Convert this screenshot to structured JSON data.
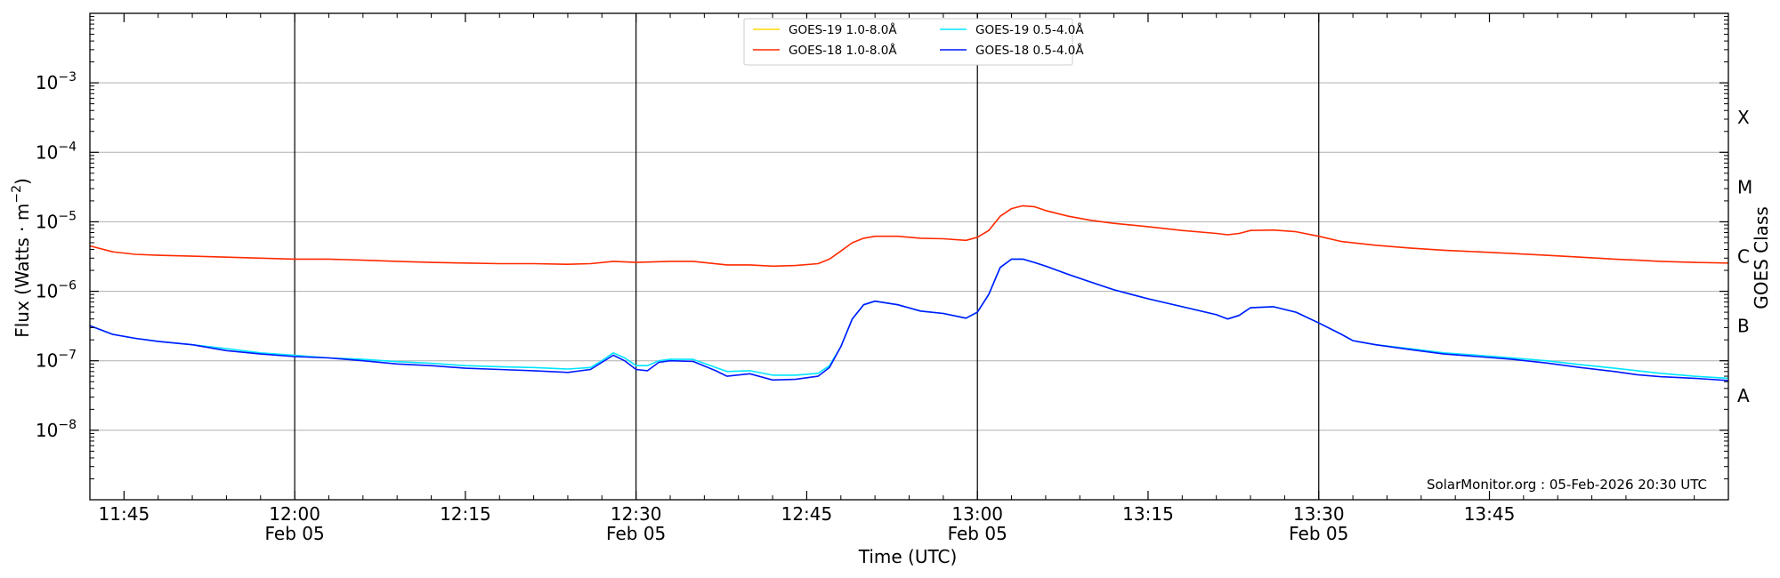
{
  "chart_data": {
    "type": "line",
    "xlabel": "Time (UTC)",
    "ylabel_parts": [
      "Flux (Watts · m",
      "−2",
      ")"
    ],
    "ylabel2": "GOES Class",
    "x_range": [
      "11:42",
      "14:06"
    ],
    "ylim": [
      1e-09,
      0.01
    ],
    "y_scale": "log",
    "grid": "horizontal-major",
    "legend_position": "top-center",
    "credit": "SolarMonitor.org : 05-Feb-2026 20:30 UTC",
    "x_ticks": [
      {
        "t": "11:45",
        "l1": "11:45",
        "l2": ""
      },
      {
        "t": "12:00",
        "l1": "12:00",
        "l2": "Feb 05"
      },
      {
        "t": "12:15",
        "l1": "12:15",
        "l2": ""
      },
      {
        "t": "12:30",
        "l1": "12:30",
        "l2": "Feb 05"
      },
      {
        "t": "12:45",
        "l1": "12:45",
        "l2": ""
      },
      {
        "t": "13:00",
        "l1": "13:00",
        "l2": "Feb 05"
      },
      {
        "t": "13:15",
        "l1": "13:15",
        "l2": ""
      },
      {
        "t": "13:30",
        "l1": "13:30",
        "l2": "Feb 05"
      },
      {
        "t": "13:45",
        "l1": "13:45",
        "l2": ""
      }
    ],
    "vlines": [
      "12:00",
      "12:30",
      "13:00",
      "13:30"
    ],
    "y_ticks": [
      {
        "exp": -8,
        "base": "10",
        "sup": "−8"
      },
      {
        "exp": -7,
        "base": "10",
        "sup": "−7"
      },
      {
        "exp": -6,
        "base": "10",
        "sup": "−6"
      },
      {
        "exp": -5,
        "base": "10",
        "sup": "−5"
      },
      {
        "exp": -4,
        "base": "10",
        "sup": "−4"
      },
      {
        "exp": -3,
        "base": "10",
        "sup": "−3"
      }
    ],
    "classes": [
      {
        "label": "A",
        "exp": -7.5
      },
      {
        "label": "B",
        "exp": -6.5
      },
      {
        "label": "C",
        "exp": -5.5
      },
      {
        "label": "M",
        "exp": -4.5
      },
      {
        "label": "X",
        "exp": -3.5
      }
    ],
    "series": [
      {
        "name": "GOES-19 1.0-8.0Å",
        "color": "#ffd700",
        "legend_only": true,
        "x": [],
        "y": []
      },
      {
        "name": "GOES-18 1.0-8.0Å",
        "color": "#ff2a00",
        "x": [
          "11:42",
          "11:44",
          "11:46",
          "11:48",
          "11:51",
          "11:54",
          "11:57",
          "12:00",
          "12:03",
          "12:06",
          "12:09",
          "12:12",
          "12:15",
          "12:18",
          "12:21",
          "12:24",
          "12:26",
          "12:28",
          "12:30",
          "12:33",
          "12:35",
          "12:38",
          "12:40",
          "12:42",
          "12:44",
          "12:46",
          "12:47",
          "12:48",
          "12:49",
          "12:50",
          "12:51",
          "12:53",
          "12:55",
          "12:57",
          "12:59",
          "13:00",
          "13:01",
          "13:02",
          "13:03",
          "13:04",
          "13:05",
          "13:06",
          "13:08",
          "13:10",
          "13:12",
          "13:15",
          "13:18",
          "13:21",
          "13:22",
          "13:23",
          "13:24",
          "13:26",
          "13:28",
          "13:30",
          "13:32",
          "13:35",
          "13:38",
          "13:41",
          "13:44",
          "13:47",
          "13:50",
          "13:53",
          "13:56",
          "13:58",
          "14:00",
          "14:03",
          "14:06"
        ],
        "y": [
          4.5e-06,
          3.7e-06,
          3.4e-06,
          3.3e-06,
          3.2e-06,
          3.1e-06,
          3e-06,
          2.9e-06,
          2.9e-06,
          2.8e-06,
          2.7e-06,
          2.6e-06,
          2.55e-06,
          2.5e-06,
          2.5e-06,
          2.45e-06,
          2.5e-06,
          2.7e-06,
          2.6e-06,
          2.7e-06,
          2.7e-06,
          2.4e-06,
          2.4e-06,
          2.3e-06,
          2.35e-06,
          2.5e-06,
          2.9e-06,
          3.8e-06,
          5e-06,
          5.8e-06,
          6.2e-06,
          6.2e-06,
          5.8e-06,
          5.7e-06,
          5.4e-06,
          6e-06,
          7.5e-06,
          1.2e-05,
          1.55e-05,
          1.7e-05,
          1.65e-05,
          1.45e-05,
          1.2e-05,
          1.05e-05,
          9.5e-06,
          8.5e-06,
          7.5e-06,
          6.8e-06,
          6.5e-06,
          6.8e-06,
          7.5e-06,
          7.6e-06,
          7.2e-06,
          6.2e-06,
          5.2e-06,
          4.6e-06,
          4.2e-06,
          3.9e-06,
          3.7e-06,
          3.5e-06,
          3.3e-06,
          3.1e-06,
          2.9e-06,
          2.8e-06,
          2.7e-06,
          2.6e-06,
          2.55e-06
        ]
      },
      {
        "name": "GOES-19 0.5-4.0Å",
        "color": "#00e5ff",
        "x": [
          "11:42",
          "11:44",
          "11:46",
          "11:48",
          "11:51",
          "11:54",
          "11:57",
          "12:00",
          "12:03",
          "12:06",
          "12:09",
          "12:12",
          "12:15",
          "12:18",
          "12:21",
          "12:24",
          "12:26",
          "12:27",
          "12:28",
          "12:29",
          "12:30",
          "12:31",
          "12:32",
          "12:33",
          "12:35",
          "12:37",
          "12:38",
          "12:40",
          "12:42",
          "12:44",
          "12:46",
          "12:47",
          "12:48",
          "12:49",
          "12:50",
          "12:51",
          "12:53",
          "12:55",
          "12:57",
          "12:59",
          "13:00",
          "13:01",
          "13:02",
          "13:03",
          "13:04",
          "13:05",
          "13:06",
          "13:08",
          "13:10",
          "13:12",
          "13:15",
          "13:18",
          "13:21",
          "13:22",
          "13:23",
          "13:24",
          "13:26",
          "13:28",
          "13:30",
          "13:32",
          "13:33",
          "13:35",
          "13:38",
          "13:41",
          "13:44",
          "13:47",
          "13:50",
          "13:53",
          "13:56",
          "13:58",
          "14:00",
          "14:03",
          "14:06"
        ],
        "y": [
          3.2e-07,
          2.4e-07,
          2.1e-07,
          1.9e-07,
          1.7e-07,
          1.5e-07,
          1.3e-07,
          1.2e-07,
          1.1e-07,
          1.05e-07,
          9.7e-08,
          9.2e-08,
          8.5e-08,
          8.2e-08,
          8e-08,
          7.6e-08,
          8e-08,
          1e-07,
          1.3e-07,
          1.1e-07,
          8.5e-08,
          8.5e-08,
          1e-07,
          1.05e-07,
          1.05e-07,
          8e-08,
          7e-08,
          7.2e-08,
          6.2e-08,
          6.2e-08,
          6.6e-08,
          8.5e-08,
          1.6e-07,
          4e-07,
          6.4e-07,
          7.2e-07,
          6.4e-07,
          5.2e-07,
          4.8e-07,
          4.1e-07,
          5e-07,
          9e-07,
          2.2e-06,
          2.9e-06,
          2.9e-06,
          2.6e-06,
          2.3e-06,
          1.75e-06,
          1.35e-06,
          1.05e-06,
          7.8e-07,
          6e-07,
          4.6e-07,
          4e-07,
          4.5e-07,
          5.8e-07,
          6e-07,
          5e-07,
          3.5e-07,
          2.4e-07,
          1.95e-07,
          1.7e-07,
          1.5e-07,
          1.3e-07,
          1.2e-07,
          1.1e-07,
          1e-07,
          8.8e-08,
          7.8e-08,
          7.2e-08,
          6.6e-08,
          6e-08,
          5.6e-08
        ]
      },
      {
        "name": "GOES-18 0.5-4.0Å",
        "color": "#0018ff",
        "x": [
          "11:42",
          "11:44",
          "11:46",
          "11:48",
          "11:51",
          "11:54",
          "11:57",
          "12:00",
          "12:03",
          "12:06",
          "12:09",
          "12:12",
          "12:15",
          "12:18",
          "12:21",
          "12:24",
          "12:26",
          "12:27",
          "12:28",
          "12:29",
          "12:30",
          "12:31",
          "12:32",
          "12:33",
          "12:35",
          "12:37",
          "12:38",
          "12:40",
          "12:42",
          "12:44",
          "12:46",
          "12:47",
          "12:48",
          "12:49",
          "12:50",
          "12:51",
          "12:53",
          "12:55",
          "12:57",
          "12:59",
          "13:00",
          "13:01",
          "13:02",
          "13:03",
          "13:04",
          "13:05",
          "13:06",
          "13:08",
          "13:10",
          "13:12",
          "13:15",
          "13:18",
          "13:21",
          "13:22",
          "13:23",
          "13:24",
          "13:26",
          "13:28",
          "13:30",
          "13:32",
          "13:33",
          "13:35",
          "13:38",
          "13:41",
          "13:44",
          "13:47",
          "13:50",
          "13:53",
          "13:56",
          "13:58",
          "14:00",
          "14:03",
          "14:06"
        ],
        "y": [
          3.2e-07,
          2.4e-07,
          2.1e-07,
          1.9e-07,
          1.7e-07,
          1.4e-07,
          1.25e-07,
          1.15e-07,
          1.1e-07,
          1e-07,
          9e-08,
          8.5e-08,
          7.8e-08,
          7.5e-08,
          7.2e-08,
          6.8e-08,
          7.5e-08,
          9.5e-08,
          1.2e-07,
          1e-07,
          7.5e-08,
          7.2e-08,
          9.5e-08,
          1e-07,
          9.8e-08,
          7.2e-08,
          6e-08,
          6.5e-08,
          5.3e-08,
          5.4e-08,
          6e-08,
          8e-08,
          1.6e-07,
          4e-07,
          6.4e-07,
          7.2e-07,
          6.4e-07,
          5.2e-07,
          4.8e-07,
          4.1e-07,
          5e-07,
          9e-07,
          2.2e-06,
          2.9e-06,
          2.9e-06,
          2.6e-06,
          2.3e-06,
          1.75e-06,
          1.35e-06,
          1.05e-06,
          7.8e-07,
          6e-07,
          4.6e-07,
          4e-07,
          4.5e-07,
          5.8e-07,
          6e-07,
          5e-07,
          3.5e-07,
          2.4e-07,
          1.95e-07,
          1.7e-07,
          1.45e-07,
          1.25e-07,
          1.15e-07,
          1.05e-07,
          9.3e-08,
          8e-08,
          7e-08,
          6.3e-08,
          5.9e-08,
          5.6e-08,
          5.2e-08
        ]
      }
    ],
    "legend_order": [
      0,
      2,
      1,
      3
    ]
  }
}
